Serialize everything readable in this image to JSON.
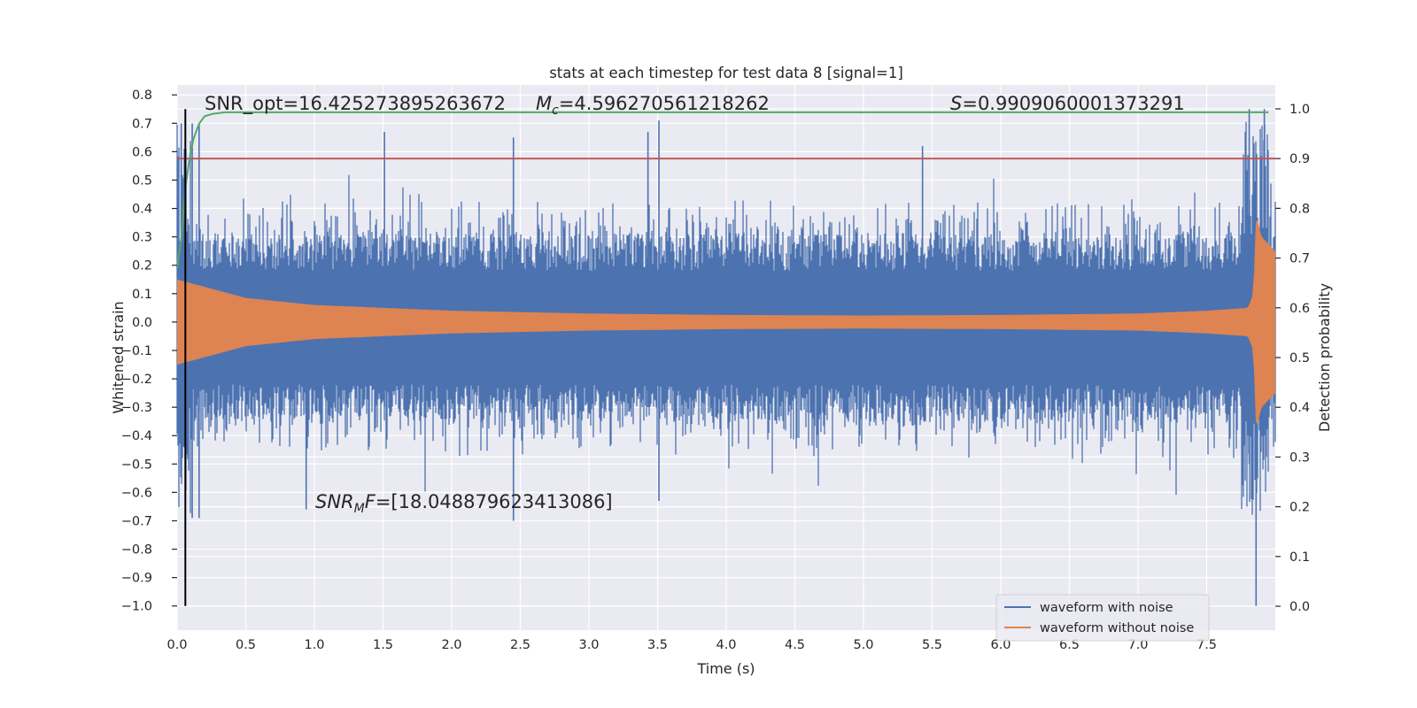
{
  "chart_data": {
    "type": "line",
    "title": "stats at each timestep for test data 8 [signal=1]",
    "xlabel": "Time (s)",
    "ylabel": "Whitened strain",
    "y2label": "Detection probability",
    "xlim": [
      0,
      8.0
    ],
    "ylim": [
      -1.085,
      0.835
    ],
    "y2lim": [
      -0.048,
      1.048
    ],
    "xticks": [
      "0.0",
      "0.5",
      "1.0",
      "1.5",
      "2.0",
      "2.5",
      "3.0",
      "3.5",
      "4.0",
      "4.5",
      "5.0",
      "5.5",
      "6.0",
      "6.5",
      "7.0",
      "7.5"
    ],
    "yticks": [
      "0.8",
      "0.7",
      "0.6",
      "0.5",
      "0.4",
      "0.3",
      "0.2",
      "0.1",
      "0.0",
      "−0.1",
      "−0.2",
      "−0.3",
      "−0.4",
      "−0.5",
      "−0.6",
      "−0.7",
      "−0.8",
      "−0.9",
      "−1.0"
    ],
    "y2ticks": [
      "1.0",
      "0.9",
      "0.8",
      "0.7",
      "0.6",
      "0.5",
      "0.4",
      "0.3",
      "0.2",
      "0.1",
      "0.0"
    ],
    "grid": true,
    "legend_position": "lower-right",
    "series": [
      {
        "name": "waveform with noise",
        "color": "#4c72b0",
        "axis": "left",
        "description_values": {
          "typical_positive_peak": 0.4,
          "max_positive": 0.75,
          "typical_negative_peak": -0.45,
          "min_negative": -1.0
        }
      },
      {
        "name": "waveform without noise",
        "color": "#dd8452",
        "axis": "left",
        "envelope": {
          "t": [
            0.0,
            0.5,
            1.0,
            2.0,
            3.0,
            4.0,
            5.0,
            6.0,
            7.0,
            7.5,
            7.8,
            7.84,
            7.86,
            7.9,
            8.0
          ],
          "amp": [
            0.15,
            0.085,
            0.06,
            0.04,
            0.03,
            0.025,
            0.023,
            0.025,
            0.03,
            0.04,
            0.05,
            0.1,
            0.38,
            0.3,
            0.25
          ]
        }
      },
      {
        "name": "",
        "color": "#55a868",
        "axis": "right",
        "x": [
          0.0,
          0.03,
          0.06,
          0.09,
          0.12,
          0.16,
          0.2,
          0.26,
          0.35,
          0.5,
          7.95
        ],
        "y": [
          0.68,
          0.74,
          0.84,
          0.9,
          0.94,
          0.97,
          0.985,
          0.99,
          0.993,
          0.993,
          0.993
        ]
      },
      {
        "name": "",
        "color": "#c44e52",
        "axis": "right",
        "x": [
          0.0,
          8.0
        ],
        "y": [
          0.9,
          0.9
        ]
      }
    ],
    "vline": {
      "x": 0.06,
      "ymin": -1.0,
      "ymax": 0.75,
      "color": "#000000"
    },
    "annotations": {
      "snr_opt": "SNR_opt=16.425273895263672",
      "mc_prefix": "M",
      "mc_sub": "c",
      "mc_value": "=4.596270561218262",
      "s_prefix": "S",
      "s_value": "=0.9909060001373291",
      "snr_mf_prefix": "SNR",
      "snr_mf_sub": "M",
      "snr_mf_mid": "F",
      "snr_mf_value": "=[18.048879623413086]"
    },
    "colors": {
      "background": "#eaeaf2",
      "grid": "#ffffff",
      "noise": "#4c72b0",
      "clean": "#dd8452",
      "prob": "#55a868",
      "threshold": "#c44e52"
    }
  }
}
